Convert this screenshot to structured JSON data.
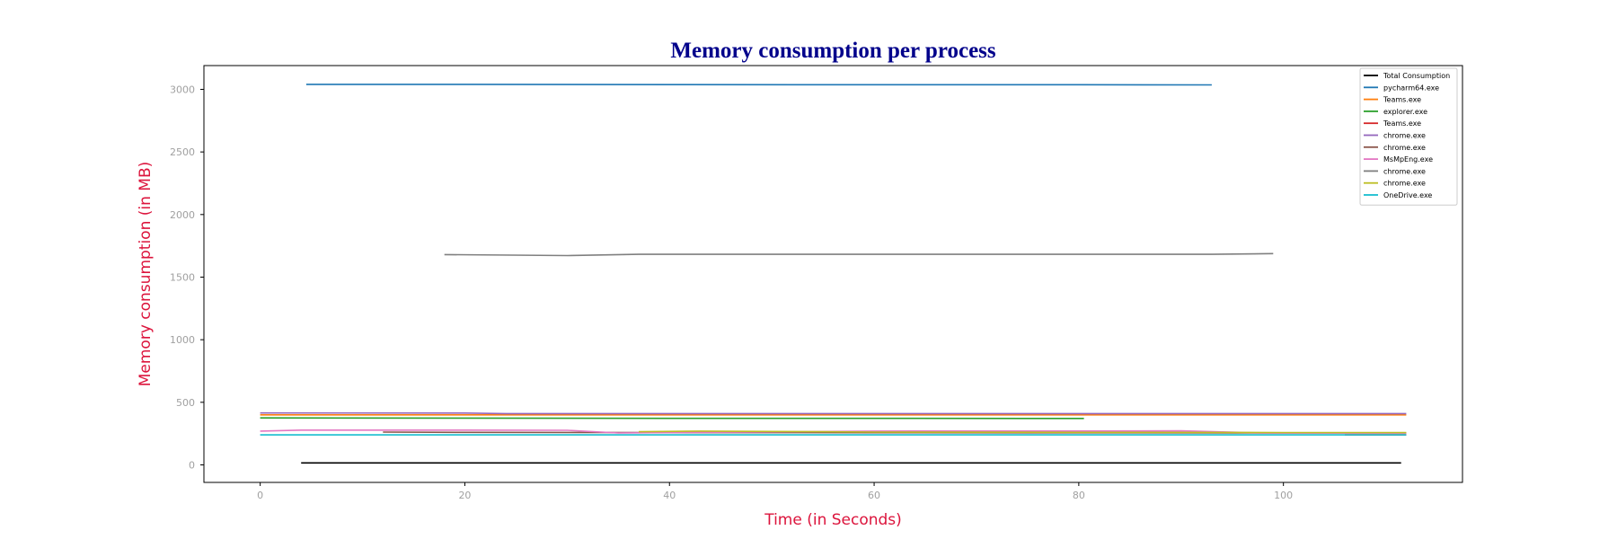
{
  "chart_data": {
    "type": "line",
    "title": "Memory consumption per process",
    "xlabel": "Time (in Seconds)",
    "ylabel": "Memory consumption (in MB)",
    "xlim": [
      -5.5,
      117.5
    ],
    "ylim": [
      -140,
      3190
    ],
    "xticks": [
      0,
      20,
      40,
      60,
      80,
      100
    ],
    "yticks": [
      0,
      500,
      1000,
      1500,
      2000,
      2500,
      3000
    ],
    "grid": false,
    "legend_position": "top-right",
    "series": [
      {
        "name": "Total Consumption",
        "color": "#000000",
        "points": [
          [
            4,
            16
          ],
          [
            30,
            16
          ],
          [
            60,
            16
          ],
          [
            90,
            16
          ],
          [
            111.5,
            16
          ]
        ]
      },
      {
        "name": "pycharm64.exe",
        "color": "#1f77b4",
        "points": [
          [
            4.5,
            3040
          ],
          [
            20,
            3040
          ],
          [
            40,
            3038
          ],
          [
            60,
            3037
          ],
          [
            80,
            3037
          ],
          [
            93,
            3036
          ]
        ]
      },
      {
        "name": "Teams.exe",
        "color": "#ff7f0e",
        "points": [
          [
            0,
            400
          ],
          [
            20,
            400
          ],
          [
            40,
            400
          ],
          [
            60,
            400
          ],
          [
            80,
            400
          ],
          [
            100,
            400
          ],
          [
            112,
            400
          ]
        ]
      },
      {
        "name": "explorer.exe",
        "color": "#2ca02c",
        "points": [
          [
            0,
            375
          ],
          [
            20,
            374
          ],
          [
            40,
            372
          ],
          [
            60,
            372
          ],
          [
            80.5,
            371
          ]
        ]
      },
      {
        "name": "Teams.exe",
        "color": "#d62728",
        "points": [
          [
            106,
            240
          ],
          [
            112,
            240
          ]
        ]
      },
      {
        "name": "chrome.exe",
        "color": "#9467bd",
        "points": [
          [
            0,
            415
          ],
          [
            20,
            414
          ],
          [
            24,
            410
          ],
          [
            40,
            410
          ],
          [
            60,
            410
          ],
          [
            80,
            410
          ],
          [
            100,
            410
          ],
          [
            112,
            410
          ]
        ]
      },
      {
        "name": "chrome.exe",
        "color": "#8c564b",
        "points": [
          [
            12,
            262
          ],
          [
            20,
            260
          ],
          [
            40,
            258
          ],
          [
            60,
            257
          ],
          [
            80,
            256
          ],
          [
            100,
            255
          ],
          [
            112,
            255
          ]
        ]
      },
      {
        "name": "MsMpEng.exe",
        "color": "#e377c2",
        "points": [
          [
            0,
            270
          ],
          [
            4,
            278
          ],
          [
            20,
            278
          ],
          [
            30,
            276
          ],
          [
            35,
            255
          ],
          [
            60,
            270
          ],
          [
            90,
            272
          ],
          [
            98,
            255
          ],
          [
            112,
            255
          ]
        ]
      },
      {
        "name": "chrome.exe",
        "color": "#7f7f7f",
        "points": [
          [
            18,
            1680
          ],
          [
            30,
            1672
          ],
          [
            37,
            1682
          ],
          [
            60,
            1682
          ],
          [
            80,
            1682
          ],
          [
            93,
            1682
          ],
          [
            99,
            1688
          ]
        ]
      },
      {
        "name": "chrome.exe",
        "color": "#bcbd22",
        "points": [
          [
            37,
            265
          ],
          [
            43,
            270
          ],
          [
            55,
            265
          ],
          [
            60,
            262
          ],
          [
            80,
            260
          ],
          [
            100,
            258
          ],
          [
            112,
            258
          ]
        ]
      },
      {
        "name": "OneDrive.exe",
        "color": "#17becf",
        "points": [
          [
            0,
            240
          ],
          [
            20,
            240
          ],
          [
            40,
            240
          ],
          [
            60,
            240
          ],
          [
            80,
            240
          ],
          [
            100,
            240
          ],
          [
            112,
            240
          ]
        ]
      }
    ]
  }
}
